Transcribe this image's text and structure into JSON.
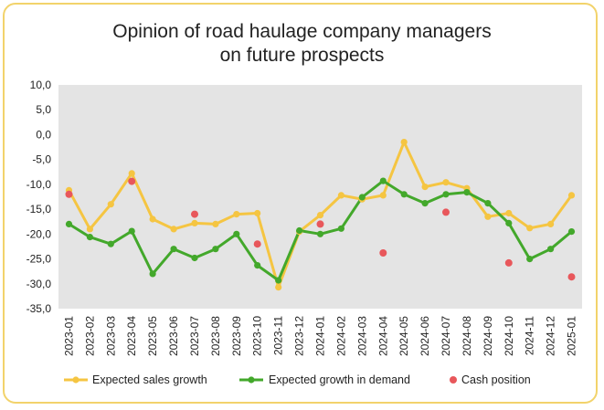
{
  "chart_data": {
    "type": "line",
    "title_line1": "Opinion of road haulage company managers",
    "title_line2": "on future prospects",
    "xlabel": "",
    "ylabel": "",
    "ylim": [
      -35,
      10
    ],
    "y_ticks": [
      "10,0",
      "5,0",
      "0,0",
      "-5,0",
      "-10,0",
      "-15,0",
      "-20,0",
      "-25,0",
      "-30,0",
      "-35,0"
    ],
    "y_tick_values": [
      10,
      5,
      0,
      -5,
      -10,
      -15,
      -20,
      -25,
      -30,
      -35
    ],
    "grid": false,
    "legend_position": "bottom",
    "categories": [
      "2023-01",
      "2023-02",
      "2023-03",
      "2023-04",
      "2023-05",
      "2023-06",
      "2023-07",
      "2023-08",
      "2023-09",
      "2023-10",
      "2023-11",
      "2023-12",
      "2024-01",
      "2024-02",
      "2024-03",
      "2024-04",
      "2024-05",
      "2024-06",
      "2024-07",
      "2024-08",
      "2024-09",
      "2024-10",
      "2024-11",
      "2024-12",
      "2025-01"
    ],
    "series": [
      {
        "name": "Expected sales growth",
        "kind": "line",
        "color": "#f5c542",
        "values": [
          -11.2,
          -19.0,
          -14.0,
          -7.8,
          -17.0,
          -19.0,
          -17.8,
          -18.0,
          -16.0,
          -15.8,
          -30.7,
          -19.5,
          -16.2,
          -12.2,
          -13.0,
          -12.2,
          -1.5,
          -10.5,
          -9.6,
          -10.8,
          -16.5,
          -15.8,
          -18.8,
          -18.0,
          -12.2
        ]
      },
      {
        "name": "Expected growth in demand",
        "kind": "line",
        "color": "#43a82b",
        "values": [
          -18.0,
          -20.6,
          -22.0,
          -19.4,
          -28.0,
          -23.0,
          -24.8,
          -23.0,
          -20.0,
          -26.3,
          -29.3,
          -19.3,
          -20.0,
          -18.9,
          -12.6,
          -9.3,
          -12.0,
          -13.8,
          -12.0,
          -11.6,
          -13.8,
          -17.8,
          -25.0,
          -23.0,
          -19.5
        ]
      },
      {
        "name": "Cash position",
        "kind": "scatter",
        "color": "#e8575b",
        "values": [
          -12.0,
          null,
          null,
          -9.4,
          null,
          null,
          -16.0,
          null,
          null,
          -22.0,
          null,
          null,
          -18.0,
          null,
          null,
          -23.8,
          null,
          null,
          -15.6,
          null,
          null,
          -25.8,
          null,
          null,
          -28.6
        ]
      }
    ]
  }
}
